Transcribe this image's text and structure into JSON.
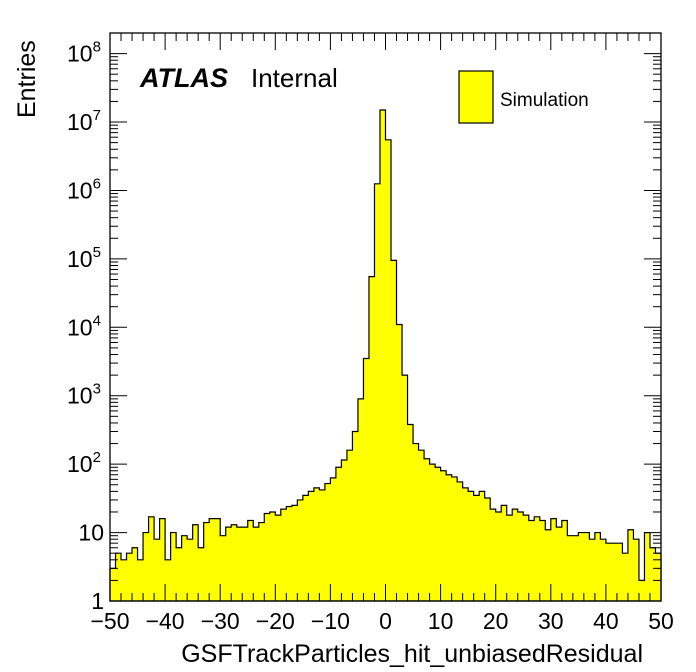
{
  "chart_data": {
    "type": "histogram",
    "experiment": "ATLAS",
    "status": "Internal",
    "xlabel": "GSFTrackParticles_hit_unbiasedResidual",
    "ylabel": "Entries",
    "xlim": [
      -50,
      50
    ],
    "ylim": [
      1,
      200000000
    ],
    "yscale": "log",
    "fill_color": "#ffff00",
    "line_color": "#000000",
    "legend": {
      "position": "top-right",
      "entries": [
        "Simulation"
      ]
    },
    "x_ticks": [
      -50,
      -40,
      -30,
      -20,
      -10,
      0,
      10,
      20,
      30,
      40,
      50
    ],
    "x_tick_labels": [
      "−50",
      "−40",
      "−30",
      "−20",
      "−10",
      "0",
      "10",
      "20",
      "30",
      "40",
      "50"
    ],
    "y_ticks": [
      1,
      10,
      100,
      1000,
      10000,
      100000,
      1000000,
      10000000,
      100000000
    ],
    "y_tick_labels": [
      {
        "base": "1",
        "exp": ""
      },
      {
        "base": "10",
        "exp": ""
      },
      {
        "base": "10",
        "exp": "2"
      },
      {
        "base": "10",
        "exp": "3"
      },
      {
        "base": "10",
        "exp": "4"
      },
      {
        "base": "10",
        "exp": "5"
      },
      {
        "base": "10",
        "exp": "6"
      },
      {
        "base": "10",
        "exp": "7"
      },
      {
        "base": "10",
        "exp": "8"
      }
    ],
    "bin_width": 1,
    "bin_edges_start": -50,
    "bin_contents": [
      3,
      5,
      4,
      5,
      6,
      4,
      10,
      17,
      8,
      16,
      4,
      10,
      6,
      9,
      8,
      13,
      6,
      14,
      16,
      16,
      9,
      12,
      13,
      12,
      12,
      15,
      12,
      14,
      19,
      20,
      18,
      22,
      24,
      25,
      30,
      35,
      40,
      45,
      42,
      52,
      63,
      90,
      115,
      160,
      300,
      900,
      3500,
      55000,
      1250000,
      15000000,
      5500000,
      95000,
      11000,
      2000,
      380,
      200,
      160,
      120,
      100,
      90,
      80,
      70,
      65,
      55,
      45,
      40,
      35,
      40,
      32,
      22,
      20,
      25,
      18,
      22,
      20,
      18,
      15,
      17,
      15,
      11,
      16,
      12,
      15,
      9,
      9,
      10,
      10,
      8,
      10,
      8,
      7,
      7,
      7,
      5,
      11,
      8,
      2,
      10,
      6,
      5
    ]
  }
}
